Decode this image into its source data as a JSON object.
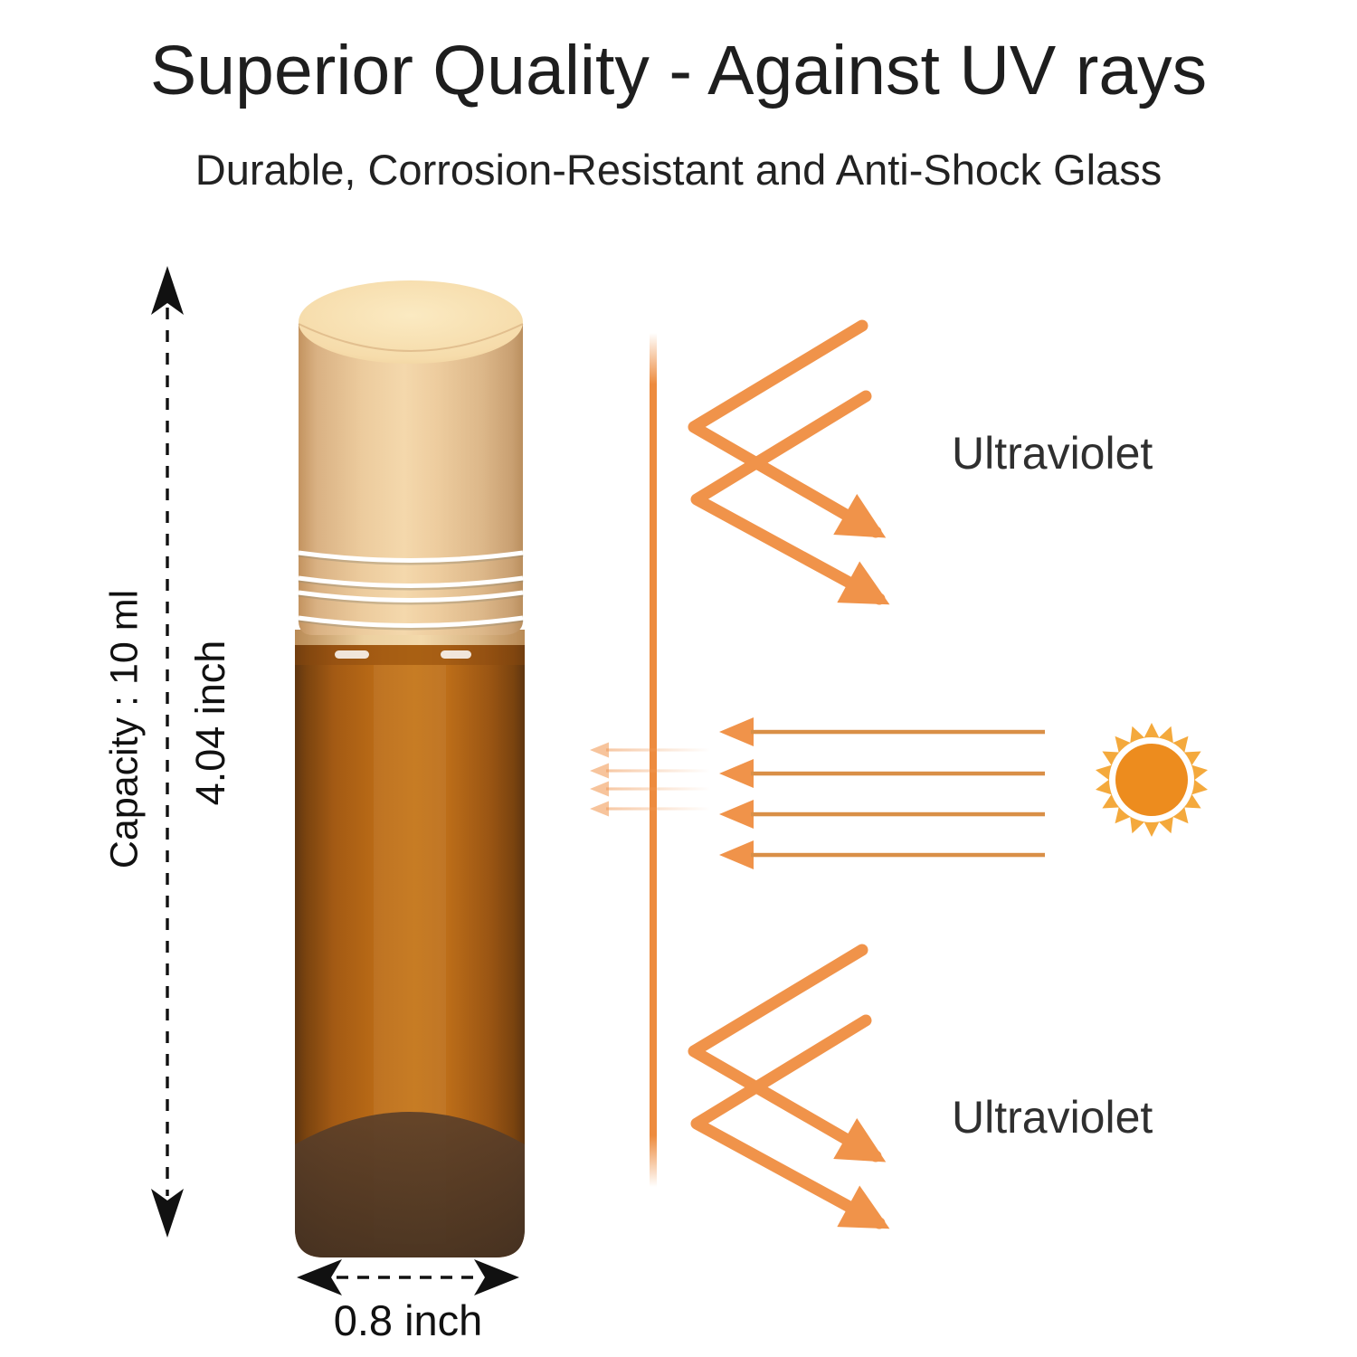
{
  "header": {
    "title": "Superior Quality - Against UV rays",
    "subtitle": "Durable, Corrosion-Resistant and Anti-Shock Glass"
  },
  "dimensions": {
    "capacity_label": "Capacity : 10 ml",
    "height_label": "4.04 inch",
    "width_label": "0.8 inch"
  },
  "uv_diagram": {
    "top_label": "Ultraviolet",
    "bottom_label": "Ultraviolet"
  },
  "colors": {
    "text_dark": "#1e1e1e",
    "label_gray": "#2f2f2f",
    "arrow_orange": "#F0934A",
    "ray_line_orange": "#D98F47",
    "barrier_orange": "#ED8B3E",
    "sun_outer": "#F4A93C",
    "sun_core": "#ED8C1E",
    "cap_gold": "#EFCFA2",
    "glass_amber": "#C06612"
  }
}
